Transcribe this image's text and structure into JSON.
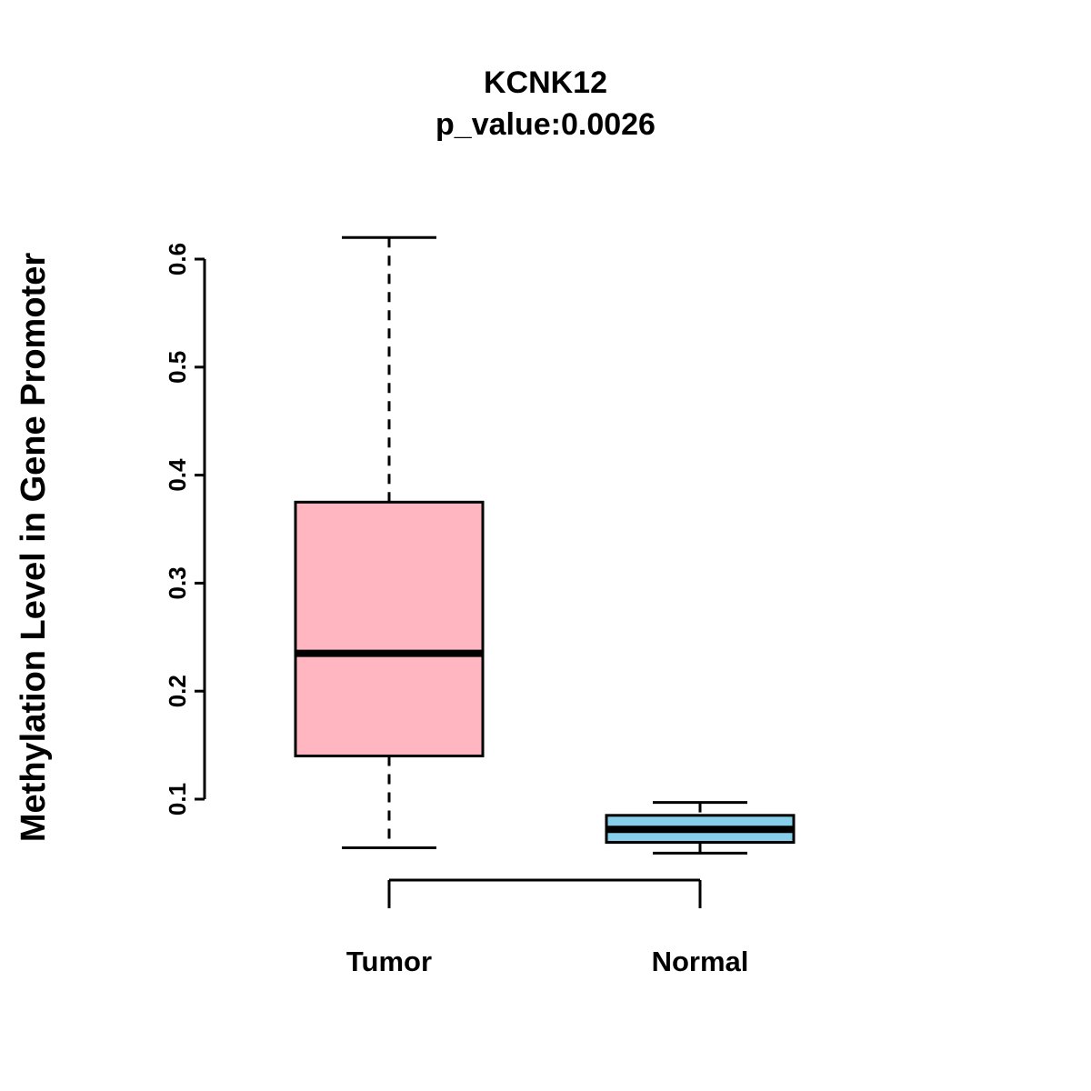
{
  "title": "KCNK12",
  "subtitle": "p_value:0.0026",
  "chart_data": {
    "type": "boxplot",
    "title": "KCNK12",
    "subtitle": "p_value:0.0026",
    "ylabel": "Methylation Level in Gene Promoter",
    "xlabel": "",
    "categories": [
      "Tumor",
      "Normal"
    ],
    "series": [
      {
        "name": "Tumor",
        "color": "#FFB6C1",
        "whisker_low": 0.055,
        "q1": 0.14,
        "median": 0.235,
        "q3": 0.375,
        "whisker_high": 0.62
      },
      {
        "name": "Normal",
        "color": "#87CEEB",
        "whisker_low": 0.05,
        "q1": 0.06,
        "median": 0.072,
        "q3": 0.085,
        "whisker_high": 0.097
      }
    ],
    "yticks": [
      0.1,
      0.2,
      0.3,
      0.4,
      0.5,
      0.6
    ],
    "ylim": [
      0.04,
      0.64
    ],
    "grid": false,
    "legend": "none"
  },
  "colors": {
    "tumor_box": "#FFB6C1",
    "normal_box": "#87CEEB",
    "axis": "#000000",
    "median": "#000000"
  }
}
